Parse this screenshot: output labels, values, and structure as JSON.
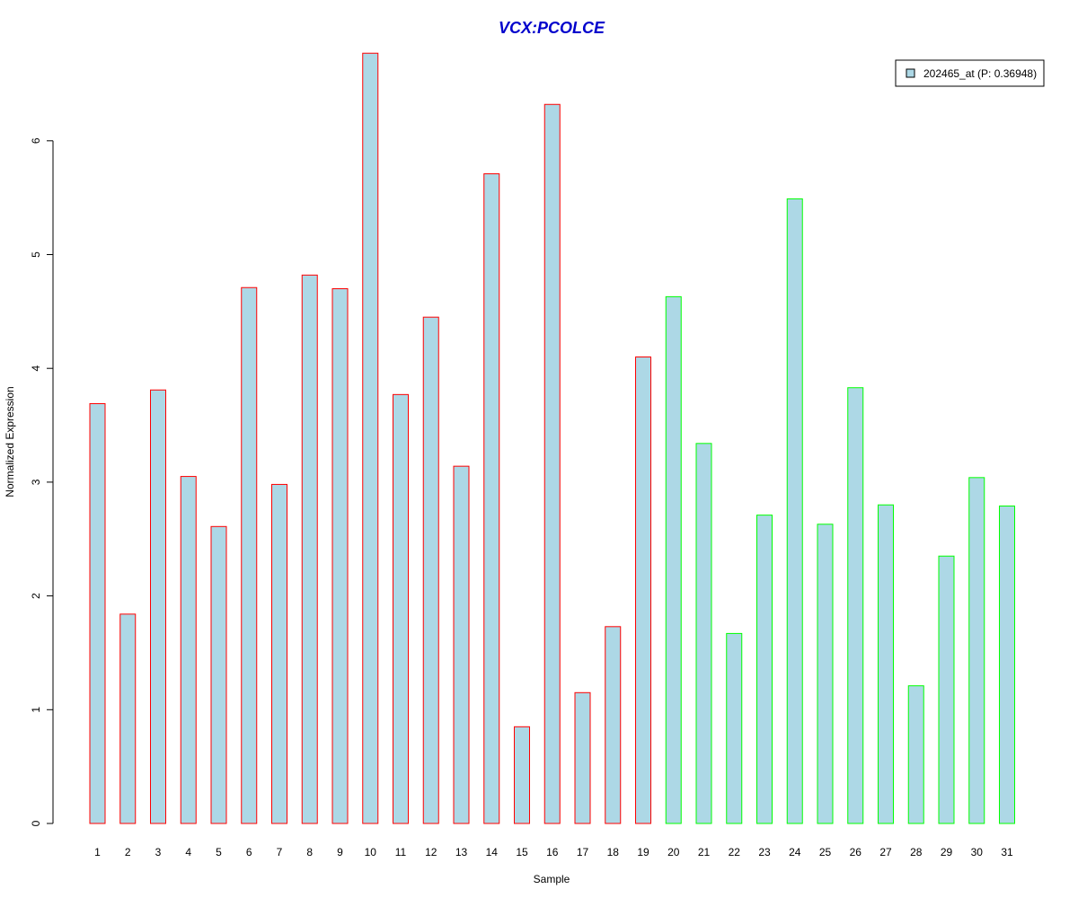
{
  "chart_data": {
    "type": "bar",
    "title": "VCX:PCOLCE",
    "xlabel": "Sample",
    "ylabel": "Normalized Expression",
    "ylim": [
      0,
      6.8
    ],
    "yticks": [
      0,
      1,
      2,
      3,
      4,
      5,
      6
    ],
    "grid": false,
    "legend_position": "top-right",
    "legend": {
      "label": "202465_at (P: 0.36948)",
      "fill": "#add8e6",
      "border": "#000000"
    },
    "bar_fill": "#add8e6",
    "categories": [
      "1",
      "2",
      "3",
      "4",
      "5",
      "6",
      "7",
      "8",
      "9",
      "10",
      "11",
      "12",
      "13",
      "14",
      "15",
      "16",
      "17",
      "18",
      "19",
      "20",
      "21",
      "22",
      "23",
      "24",
      "25",
      "26",
      "27",
      "28",
      "29",
      "30",
      "31"
    ],
    "values": [
      3.69,
      1.84,
      3.81,
      3.05,
      2.61,
      4.71,
      2.98,
      4.82,
      4.7,
      6.77,
      3.77,
      4.45,
      3.14,
      5.71,
      0.85,
      6.32,
      1.15,
      1.73,
      4.1,
      4.63,
      3.34,
      1.67,
      2.71,
      5.49,
      2.63,
      3.83,
      2.8,
      1.21,
      2.35,
      3.04,
      2.79
    ],
    "groups": [
      {
        "samples": [
          "1",
          "19"
        ],
        "border": "#ff0000"
      },
      {
        "samples": [
          "20",
          "31"
        ],
        "border": "#00ff00"
      }
    ]
  }
}
